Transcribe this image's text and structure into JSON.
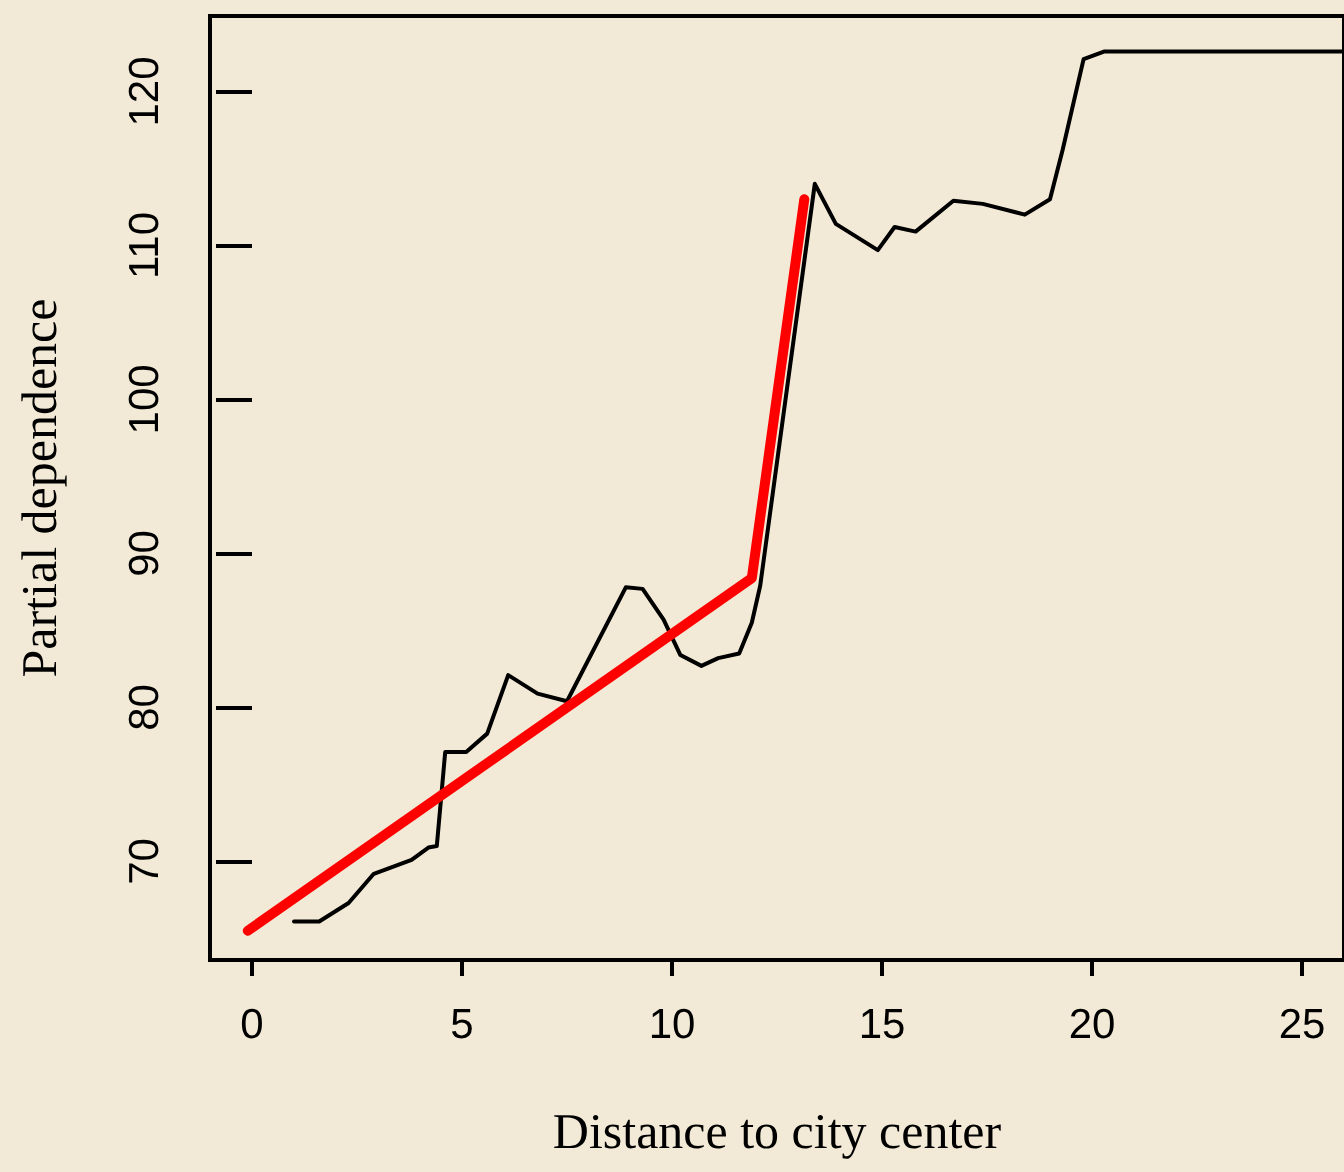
{
  "chart_data": {
    "type": "line",
    "xlabel": "Distance to city center",
    "ylabel": "Partial dependence",
    "xlim": [
      -1,
      26
    ],
    "ylim": [
      63.6,
      124.9
    ],
    "xticks": [
      0,
      5,
      10,
      15,
      20,
      25
    ],
    "yticks": [
      70,
      80,
      90,
      100,
      110,
      120
    ],
    "grid": false,
    "marker": "none",
    "line_style": "solid",
    "series": [
      {
        "color": "#000000",
        "x": [
          1.0,
          1.6,
          2.3,
          2.9,
          3.8,
          4.2,
          4.4,
          4.6,
          5.1,
          5.6,
          6.1,
          6.8,
          7.5,
          8.9,
          9.3,
          9.8,
          10.2,
          10.7,
          11.1,
          11.6,
          11.9,
          12.1,
          13.4,
          13.9,
          14.9,
          15.3,
          15.8,
          16.7,
          17.4,
          18.4,
          19.0,
          19.3,
          19.8,
          20.3,
          26
        ],
        "values": [
          66.1,
          66.1,
          67.3,
          69.2,
          70.1,
          70.9,
          71.0,
          77.1,
          77.1,
          78.3,
          82.1,
          80.9,
          80.4,
          87.8,
          87.7,
          85.7,
          83.4,
          82.7,
          83.2,
          83.5,
          85.5,
          87.9,
          114.0,
          111.4,
          109.7,
          111.2,
          110.9,
          112.9,
          112.7,
          112.0,
          113.0,
          116.2,
          122.1,
          122.6,
          122.6
        ]
      },
      {
        "color": "#ff0000",
        "x": [
          -0.1,
          11.9,
          13.15
        ],
        "values": [
          65.5,
          88.4,
          113.0
        ]
      }
    ]
  }
}
